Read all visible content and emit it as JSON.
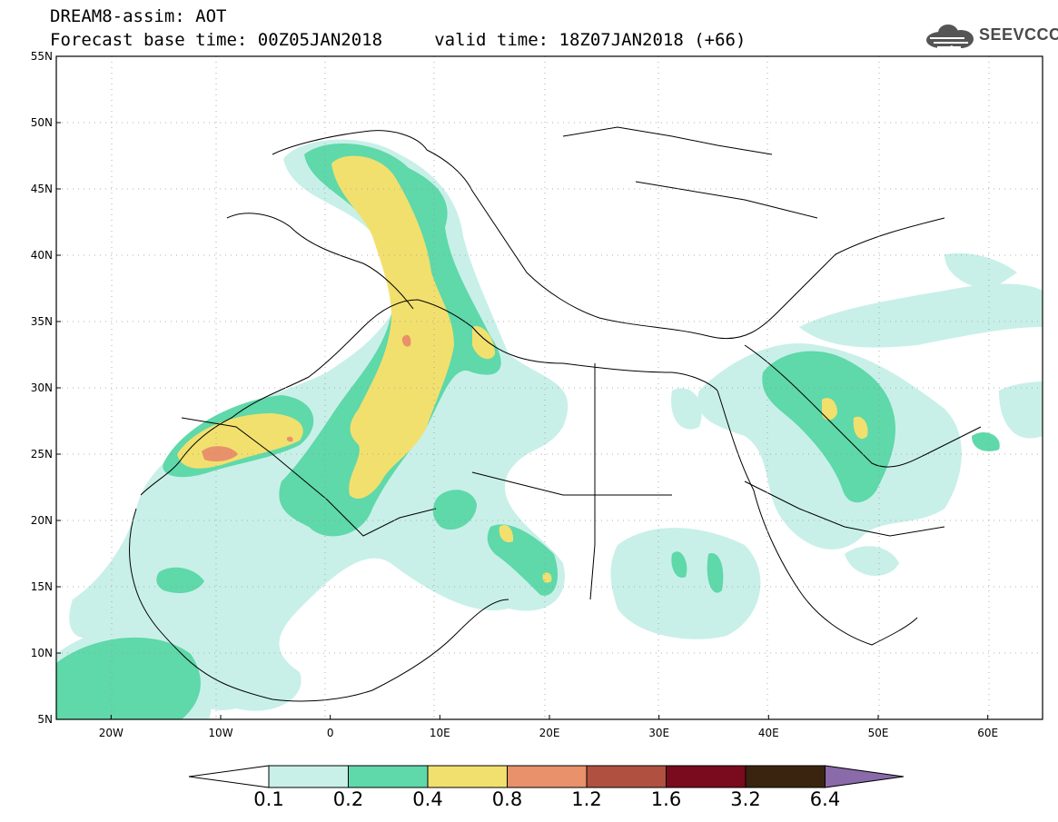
{
  "title": {
    "line1": "DREAM8-assim: AOT",
    "line2": "Forecast base time: 00Z05JAN2018     valid time: 18Z07JAN2018 (+66)"
  },
  "logo": {
    "text": "SEEVCCC",
    "icon": "cloud-icon"
  },
  "axes": {
    "lat_labels": [
      "55N",
      "50N",
      "45N",
      "40N",
      "35N",
      "30N",
      "25N",
      "20N",
      "15N",
      "10N",
      "5N"
    ],
    "lat_values": [
      55,
      50,
      45,
      40,
      35,
      30,
      25,
      20,
      15,
      10,
      5
    ],
    "lon_labels": [
      "20W",
      "10W",
      "0",
      "10E",
      "20E",
      "30E",
      "40E",
      "50E",
      "60E"
    ],
    "lon_values": [
      -20,
      -10,
      0,
      10,
      20,
      30,
      40,
      50,
      60
    ],
    "lon_range": [
      -25,
      65
    ],
    "lat_range": [
      5,
      55
    ],
    "grid": "dotted"
  },
  "colorbar": {
    "levels": [
      "0.1",
      "0.2",
      "0.4",
      "0.8",
      "1.2",
      "1.6",
      "3.2",
      "6.4"
    ],
    "colors": [
      "#c8f0e8",
      "#5fd8aa",
      "#f2e06e",
      "#e8916a",
      "#b05040",
      "#7a0a1e",
      "#3a2410",
      "#8a6aa8"
    ]
  },
  "colors": {
    "aot_01": "#c8f0e8",
    "aot_02": "#5fd8aa",
    "aot_04": "#f2e06e",
    "aot_08": "#e8916a"
  }
}
